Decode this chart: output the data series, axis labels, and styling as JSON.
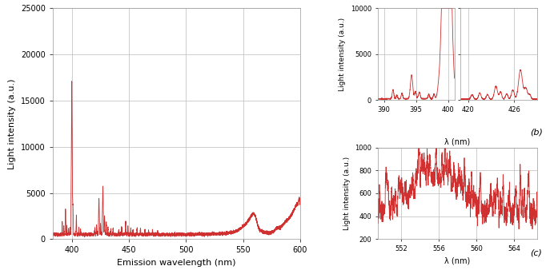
{
  "main_xlim": [
    383,
    600
  ],
  "main_ylim": [
    0,
    25000
  ],
  "main_xlabel": "Emission wavelength (nm)",
  "main_ylabel": "Light intensity (a.u.)",
  "main_xticks": [
    400,
    450,
    500,
    550,
    600
  ],
  "main_yticks": [
    0,
    5000,
    10000,
    15000,
    20000,
    25000
  ],
  "sub_b1_xlim": [
    389,
    401
  ],
  "sub_b1_ylim": [
    0,
    10000
  ],
  "sub_b1_xticks": [
    390,
    395,
    400
  ],
  "sub_b2_xlim": [
    419,
    429
  ],
  "sub_b2_ylim": [
    0,
    10000
  ],
  "sub_b2_xticks": [
    420,
    426
  ],
  "sub_b_yticks": [
    0,
    5000,
    10000
  ],
  "sub_b_ylabel": "Light intensity (a.u.)",
  "sub_b_xlabel": "λ (nm)",
  "sub_b_label": "(b)",
  "sub_c_xlim": [
    549.5,
    566.5
  ],
  "sub_c_ylim": [
    200,
    1000
  ],
  "sub_c_xticks": [
    552,
    556,
    560,
    564
  ],
  "sub_c_yticks": [
    200,
    400,
    600,
    800,
    1000
  ],
  "sub_c_ylabel": "Light intensity (a.u.)",
  "sub_c_xlabel": "λ (nm)",
  "sub_c_label": "(c)",
  "line_color": "#d03030",
  "grid_color": "#bbbbbb",
  "background_color": "#ffffff"
}
